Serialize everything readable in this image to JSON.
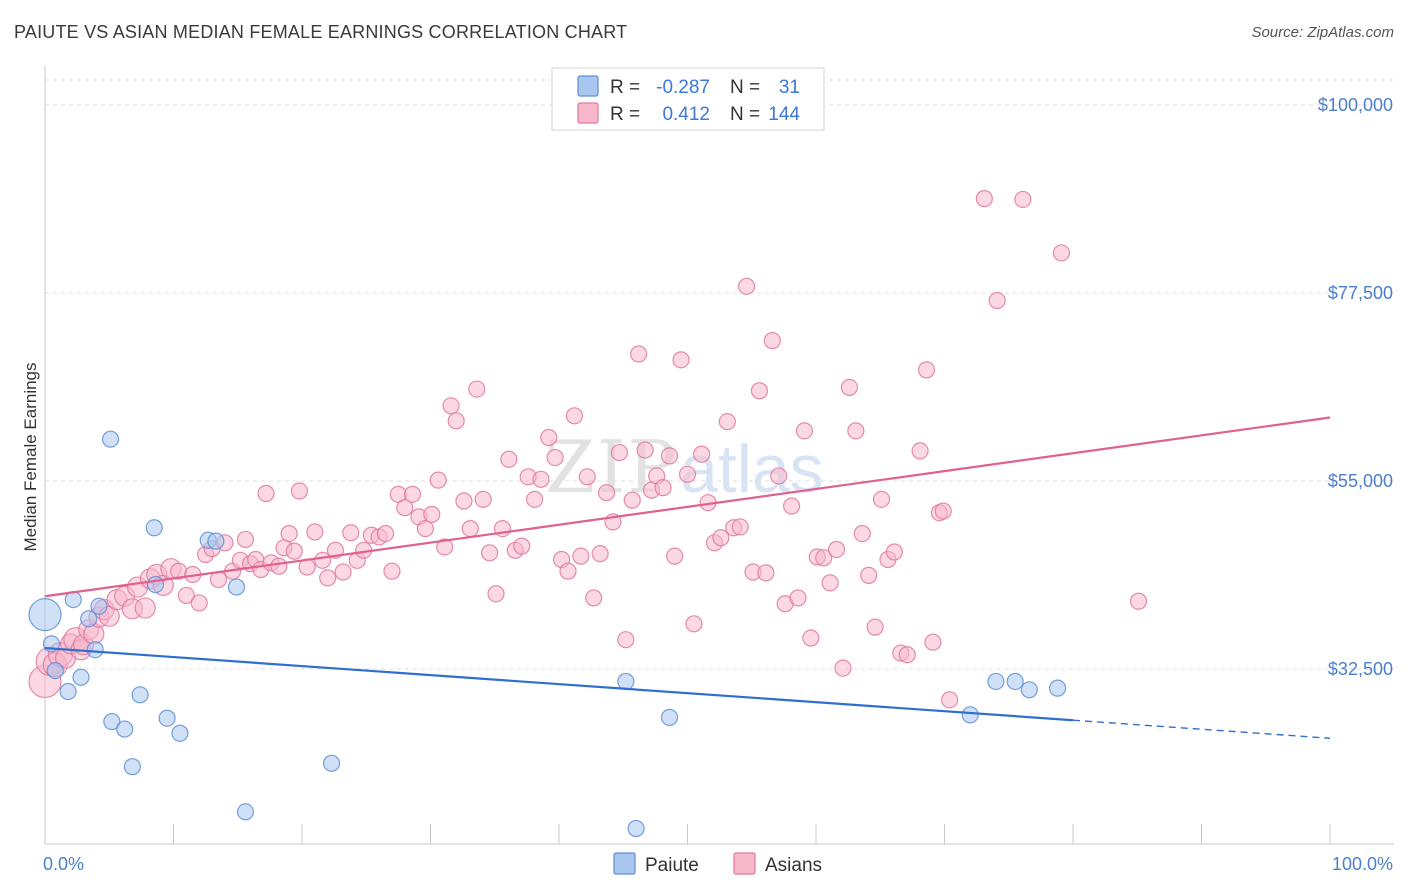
{
  "title": "PAIUTE VS ASIAN MEDIAN FEMALE EARNINGS CORRELATION CHART",
  "source": "Source: ZipAtlas.com",
  "watermark": {
    "part1": "ZIP",
    "part2": "atlas"
  },
  "colors": {
    "paiute_fill": "#a8c6f0",
    "paiute_stroke": "#5f8fd6",
    "paiute_line": "#2f6fd0",
    "asians_fill": "#f7b8cc",
    "asians_stroke": "#e0789c",
    "asians_line": "#e0608f",
    "axis_text": "#4a7fd0",
    "grid": "#dddddd"
  },
  "legend": {
    "rows": [
      {
        "r_label": "R =",
        "r_value": "-0.287",
        "n_label": "N =",
        "n_value": "31"
      },
      {
        "r_label": "R =",
        "r_value": "0.412",
        "n_label": "N =",
        "n_value": "144"
      }
    ]
  },
  "bottom_legend": {
    "items": [
      "Paiute",
      "Asians"
    ]
  },
  "chart_data": {
    "type": "scatter",
    "title": "PAIUTE VS ASIAN MEDIAN FEMALE EARNINGS CORRELATION CHART",
    "xlabel": "",
    "ylabel": "Median Female Earnings",
    "xlim": [
      0,
      100
    ],
    "ylim": [
      12500,
      103000
    ],
    "x_tick_labels": [
      "0.0%",
      "100.0%"
    ],
    "y_ticks": [
      32500,
      55000,
      77500,
      100000
    ],
    "y_tick_labels": [
      "$32,500",
      "$55,000",
      "$77,500",
      "$100,000"
    ],
    "grid": true,
    "series": [
      {
        "name": "Paiute",
        "r": -0.287,
        "n": 31,
        "trend": {
          "x0": 0,
          "y0": 35000,
          "x1": 100,
          "y1": 24200,
          "solid_until": 80
        },
        "points": [
          [
            0,
            39000,
            16
          ],
          [
            0.5,
            35500,
            8
          ],
          [
            0.8,
            32300,
            8
          ],
          [
            1.8,
            29800,
            8
          ],
          [
            2.2,
            40800,
            8
          ],
          [
            2.8,
            31500,
            8
          ],
          [
            3.4,
            38500,
            8
          ],
          [
            3.9,
            34800,
            8
          ],
          [
            4.2,
            40000,
            8
          ],
          [
            5.2,
            26200,
            8
          ],
          [
            5.1,
            60000,
            8
          ],
          [
            6.2,
            25300,
            8
          ],
          [
            6.8,
            20800,
            8
          ],
          [
            7.4,
            29400,
            8
          ],
          [
            8.6,
            42600,
            8
          ],
          [
            8.5,
            49400,
            8
          ],
          [
            9.5,
            26600,
            8
          ],
          [
            10.5,
            24800,
            8
          ],
          [
            12.7,
            47900,
            8
          ],
          [
            13.3,
            47800,
            8
          ],
          [
            14.9,
            42300,
            8
          ],
          [
            15.6,
            15400,
            8
          ],
          [
            22.3,
            21200,
            8
          ],
          [
            45.2,
            31000,
            8
          ],
          [
            46.0,
            13400,
            8
          ],
          [
            48.6,
            26700,
            8
          ],
          [
            72.0,
            27000,
            8
          ],
          [
            74.0,
            31000,
            8
          ],
          [
            75.5,
            31000,
            8
          ],
          [
            76.6,
            30000,
            8
          ],
          [
            78.8,
            30200,
            8
          ]
        ]
      },
      {
        "name": "Asians",
        "r": 0.412,
        "n": 144,
        "trend": {
          "x0": 0,
          "y0": 41200,
          "x1": 100,
          "y1": 62600
        },
        "points": [
          [
            0,
            31000,
            16
          ],
          [
            0.4,
            33400,
            14
          ],
          [
            0.8,
            33000,
            12
          ],
          [
            1.2,
            34200,
            12
          ],
          [
            1.6,
            33800,
            10
          ],
          [
            2.0,
            35500,
            10
          ],
          [
            2.4,
            36000,
            12
          ],
          [
            2.8,
            34800,
            10
          ],
          [
            3.0,
            35400,
            10
          ],
          [
            3.4,
            37200,
            10
          ],
          [
            3.8,
            36700,
            10
          ],
          [
            4.2,
            38700,
            10
          ],
          [
            4.6,
            39600,
            10
          ],
          [
            5.0,
            38800,
            10
          ],
          [
            5.6,
            40800,
            10
          ],
          [
            6.2,
            41200,
            10
          ],
          [
            6.8,
            39700,
            10
          ],
          [
            7.2,
            42300,
            10
          ],
          [
            7.8,
            39800,
            10
          ],
          [
            8.2,
            43300,
            10
          ],
          [
            8.7,
            43800,
            10
          ],
          [
            9.2,
            42500,
            10
          ],
          [
            9.8,
            44500,
            10
          ],
          [
            10.4,
            44200,
            8
          ],
          [
            11.0,
            41300,
            8
          ],
          [
            11.5,
            43800,
            8
          ],
          [
            12.0,
            40400,
            8
          ],
          [
            12.5,
            46200,
            8
          ],
          [
            13.0,
            46900,
            8
          ],
          [
            13.5,
            43200,
            8
          ],
          [
            14.0,
            47600,
            8
          ],
          [
            14.6,
            44200,
            8
          ],
          [
            15.2,
            45500,
            8
          ],
          [
            15.6,
            48000,
            8
          ],
          [
            16.0,
            45100,
            8
          ],
          [
            16.4,
            45600,
            8
          ],
          [
            16.8,
            44400,
            8
          ],
          [
            17.2,
            53500,
            8
          ],
          [
            17.6,
            45200,
            8
          ],
          [
            18.2,
            44800,
            8
          ],
          [
            18.6,
            47000,
            8
          ],
          [
            19.0,
            48700,
            8
          ],
          [
            19.4,
            46600,
            8
          ],
          [
            19.8,
            53800,
            8
          ],
          [
            20.4,
            44700,
            8
          ],
          [
            21.0,
            48900,
            8
          ],
          [
            21.6,
            45500,
            8
          ],
          [
            22.0,
            43400,
            8
          ],
          [
            22.6,
            46700,
            8
          ],
          [
            23.2,
            44100,
            8
          ],
          [
            23.8,
            48800,
            8
          ],
          [
            24.3,
            45500,
            8
          ],
          [
            24.8,
            46700,
            8
          ],
          [
            25.4,
            48500,
            8
          ],
          [
            26.0,
            48300,
            8
          ],
          [
            26.5,
            48700,
            8
          ],
          [
            27.0,
            44200,
            8
          ],
          [
            27.5,
            53400,
            8
          ],
          [
            28.0,
            51800,
            8
          ],
          [
            28.6,
            53400,
            8
          ],
          [
            29.1,
            50700,
            8
          ],
          [
            29.6,
            49300,
            8
          ],
          [
            30.1,
            51000,
            8
          ],
          [
            30.6,
            55100,
            8
          ],
          [
            31.1,
            47100,
            8
          ],
          [
            31.6,
            64000,
            8
          ],
          [
            32.0,
            62200,
            8
          ],
          [
            32.6,
            52600,
            8
          ],
          [
            33.1,
            49300,
            8
          ],
          [
            33.6,
            66000,
            8
          ],
          [
            34.1,
            52800,
            8
          ],
          [
            34.6,
            46400,
            8
          ],
          [
            35.1,
            41500,
            8
          ],
          [
            35.6,
            49300,
            8
          ],
          [
            36.1,
            57600,
            8
          ],
          [
            36.6,
            46700,
            8
          ],
          [
            37.1,
            47200,
            8
          ],
          [
            37.6,
            55500,
            8
          ],
          [
            38.1,
            52800,
            8
          ],
          [
            38.6,
            55200,
            8
          ],
          [
            39.2,
            60200,
            8
          ],
          [
            39.7,
            57800,
            8
          ],
          [
            40.2,
            45600,
            8
          ],
          [
            40.7,
            44200,
            8
          ],
          [
            41.2,
            62800,
            8
          ],
          [
            41.7,
            46000,
            8
          ],
          [
            42.2,
            55500,
            8
          ],
          [
            42.7,
            41000,
            8
          ],
          [
            43.2,
            46300,
            8
          ],
          [
            43.7,
            53600,
            8
          ],
          [
            44.2,
            50100,
            8
          ],
          [
            44.7,
            58400,
            8
          ],
          [
            45.2,
            36000,
            8
          ],
          [
            45.7,
            52700,
            8
          ],
          [
            46.2,
            70200,
            8
          ],
          [
            46.7,
            58700,
            8
          ],
          [
            47.2,
            53900,
            8
          ],
          [
            47.6,
            55600,
            8
          ],
          [
            48.1,
            54200,
            8
          ],
          [
            48.6,
            58000,
            8
          ],
          [
            49.0,
            46000,
            8
          ],
          [
            49.5,
            69500,
            8
          ],
          [
            50.0,
            55800,
            8
          ],
          [
            50.5,
            37900,
            8
          ],
          [
            51.1,
            58200,
            8
          ],
          [
            51.6,
            52400,
            8
          ],
          [
            52.1,
            47600,
            8
          ],
          [
            52.6,
            48200,
            8
          ],
          [
            53.1,
            62100,
            8
          ],
          [
            53.6,
            49400,
            8
          ],
          [
            54.1,
            49500,
            8
          ],
          [
            54.6,
            78300,
            8
          ],
          [
            55.1,
            44100,
            8
          ],
          [
            55.6,
            65800,
            8
          ],
          [
            56.1,
            44000,
            8
          ],
          [
            56.6,
            71800,
            8
          ],
          [
            57.1,
            55600,
            8
          ],
          [
            57.6,
            40300,
            8
          ],
          [
            58.1,
            52000,
            8
          ],
          [
            58.6,
            41000,
            8
          ],
          [
            59.1,
            61000,
            8
          ],
          [
            59.6,
            36200,
            8
          ],
          [
            60.1,
            45900,
            8
          ],
          [
            60.6,
            45800,
            8
          ],
          [
            61.1,
            42800,
            8
          ],
          [
            61.6,
            46800,
            8
          ],
          [
            62.1,
            32600,
            8
          ],
          [
            62.6,
            66200,
            8
          ],
          [
            63.1,
            61000,
            8
          ],
          [
            63.6,
            48700,
            8
          ],
          [
            64.1,
            43700,
            8
          ],
          [
            64.6,
            37500,
            8
          ],
          [
            65.1,
            52800,
            8
          ],
          [
            65.6,
            45600,
            8
          ],
          [
            66.1,
            46500,
            8
          ],
          [
            66.6,
            34400,
            8
          ],
          [
            67.1,
            34200,
            8
          ],
          [
            68.1,
            58600,
            8
          ],
          [
            68.6,
            68300,
            8
          ],
          [
            69.1,
            35700,
            8
          ],
          [
            69.6,
            51200,
            8
          ],
          [
            69.9,
            51400,
            8
          ],
          [
            70.4,
            28800,
            8
          ],
          [
            73.1,
            88800,
            8
          ],
          [
            74.1,
            76600,
            8
          ],
          [
            76.1,
            88700,
            8
          ],
          [
            79.1,
            82300,
            8
          ],
          [
            85.1,
            40600,
            8
          ]
        ]
      }
    ]
  }
}
